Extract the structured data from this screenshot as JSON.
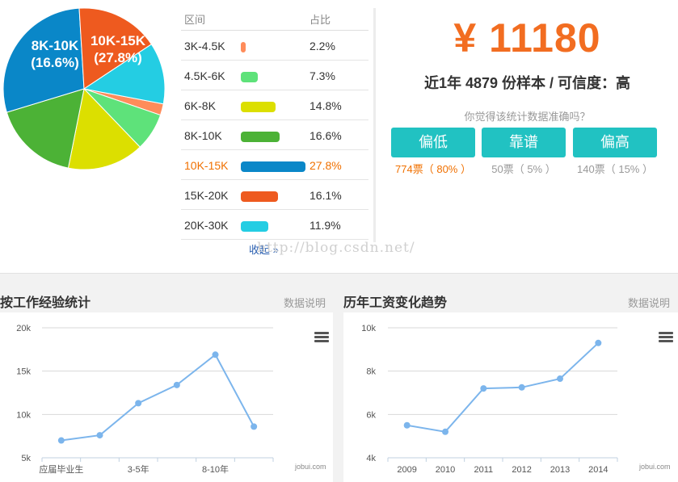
{
  "distribution": {
    "header": {
      "range": "区间",
      "share": "占比"
    },
    "rows": [
      {
        "range": "3K-4.5K",
        "pct": "2.2%",
        "value": 2.2,
        "color": "#ff8c5a",
        "highlight": false
      },
      {
        "range": "4.5K-6K",
        "pct": "7.3%",
        "value": 7.3,
        "color": "#5ee27a",
        "highlight": false
      },
      {
        "range": "6K-8K",
        "pct": "14.8%",
        "value": 14.8,
        "color": "#dcdf00",
        "highlight": false
      },
      {
        "range": "8K-10K",
        "pct": "16.6%",
        "value": 16.6,
        "color": "#4cb236",
        "highlight": false
      },
      {
        "range": "10K-15K",
        "pct": "27.8%",
        "value": 27.8,
        "color": "#0a87c8",
        "highlight": true
      },
      {
        "range": "15K-20K",
        "pct": "16.1%",
        "value": 16.1,
        "color": "#ee5a1f",
        "highlight": false
      },
      {
        "range": "20K-30K",
        "pct": "11.9%",
        "value": 11.9,
        "color": "#24cde3",
        "highlight": false
      }
    ],
    "collapse_label": "收起 »"
  },
  "pie_labels": [
    {
      "line1": "8K-10K",
      "line2": "(16.6%)"
    },
    {
      "line1": "10K-15K",
      "line2": "(27.8%)"
    }
  ],
  "summary": {
    "salary": "¥ 11180",
    "sample": "近1年 4879 份样本 / 可信度：高",
    "question": "你觉得该统计数据准确吗？",
    "votes": [
      {
        "label": "偏低",
        "count": "774票（ 80% ）",
        "highlight": true
      },
      {
        "label": "靠谱",
        "count": "50票（ 5% ）",
        "highlight": false
      },
      {
        "label": "偏高",
        "count": "140票（ 15% ）",
        "highlight": false
      }
    ]
  },
  "watermark": "http://blog.csdn.net/",
  "experience_section": {
    "title": "按工作经验统计",
    "link": "数据说明",
    "credit": "jobui.com"
  },
  "trend_section": {
    "title": "历年工资变化趋势",
    "link": "数据说明",
    "credit": "jobui.com"
  },
  "chart_data": [
    {
      "type": "pie",
      "categories": [
        "3K-4.5K",
        "4.5K-6K",
        "6K-8K",
        "8K-10K",
        "10K-15K",
        "15K-20K",
        "20K-30K"
      ],
      "values": [
        2.2,
        7.3,
        14.8,
        16.6,
        27.8,
        16.1,
        11.9
      ],
      "colors": [
        "#ff8c5a",
        "#5ee27a",
        "#dcdf00",
        "#4cb236",
        "#0a87c8",
        "#ee5a1f",
        "#24cde3"
      ]
    },
    {
      "type": "line",
      "categories": [
        "应届毕业生",
        "",
        "3-5年",
        "",
        "8-10年",
        ""
      ],
      "values": [
        7000,
        7600,
        11300,
        13400,
        16900,
        8600
      ],
      "yticks": [
        "5k",
        "10k",
        "15k",
        "20k"
      ],
      "ylim": [
        5000,
        20000
      ],
      "grid": true,
      "color": "#7cb5ec"
    },
    {
      "type": "line",
      "categories": [
        "2009",
        "2010",
        "2011",
        "2012",
        "2013",
        "2014"
      ],
      "values": [
        5500,
        5200,
        7200,
        7250,
        7650,
        9300
      ],
      "yticks": [
        "4k",
        "6k",
        "8k",
        "10k"
      ],
      "ylim": [
        4000,
        10000
      ],
      "grid": true,
      "color": "#7cb5ec"
    }
  ]
}
